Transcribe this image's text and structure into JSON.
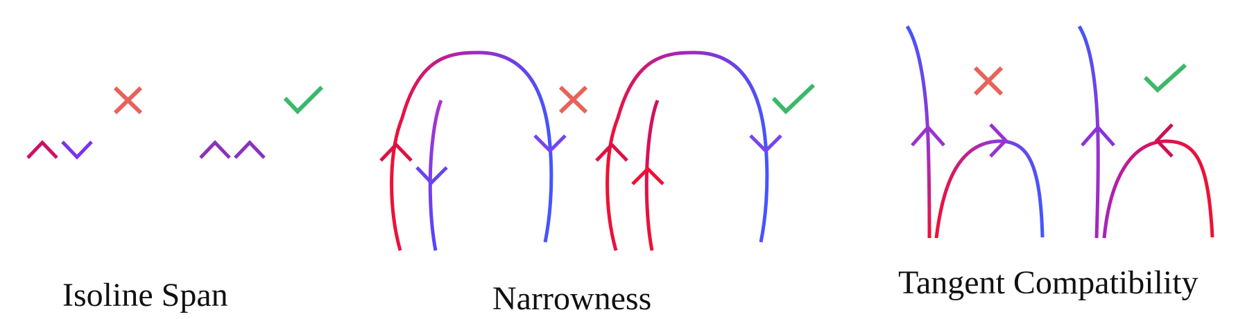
{
  "captions": {
    "isoline_span": "Isoline Span",
    "narrowness": "Narrowness",
    "tangent_compatibility": "Tangent Compatibility"
  },
  "colors": {
    "red": "#ee1133",
    "magenta": "#bb22aa",
    "purple": "#9933dd",
    "blue": "#4455ff",
    "cross": "#e8625a",
    "check": "#3cb86a"
  },
  "panels": [
    {
      "id": "isoline-span-invalid",
      "verdict": "invalid",
      "icon": "cross-icon"
    },
    {
      "id": "isoline-span-valid",
      "verdict": "valid",
      "icon": "check-icon"
    },
    {
      "id": "narrowness-invalid",
      "verdict": "invalid",
      "icon": "cross-icon"
    },
    {
      "id": "narrowness-valid",
      "verdict": "valid",
      "icon": "check-icon"
    },
    {
      "id": "tangent-compatibility-invalid",
      "verdict": "invalid",
      "icon": "cross-icon"
    },
    {
      "id": "tangent-compatibility-valid",
      "verdict": "valid",
      "icon": "check-icon"
    }
  ]
}
